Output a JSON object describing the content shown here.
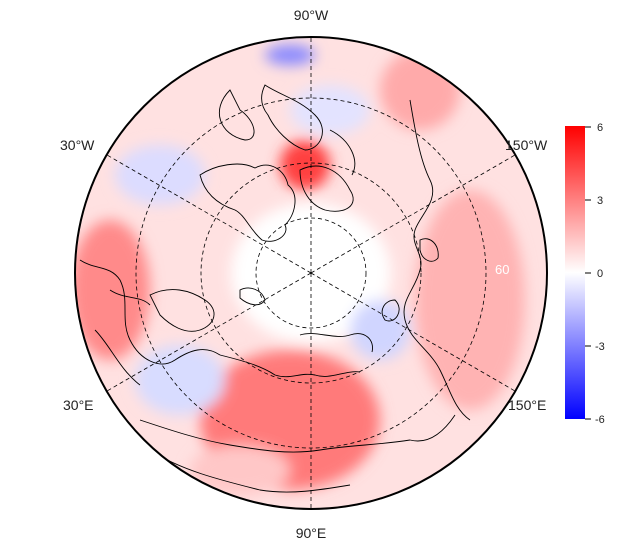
{
  "map": {
    "projection": "north-polar-stereographic",
    "longitude_labels": {
      "top": "90°W",
      "upper_left": "30°W",
      "upper_right": "150°W",
      "lower_left": "30°E",
      "lower_right": "150°E",
      "bottom": "90°E"
    },
    "latitude_label": "60",
    "graticule": {
      "latitude_circles": 3,
      "meridians_every_deg": 30,
      "style": "dashed"
    }
  },
  "colorbar": {
    "ticks": [
      "6",
      "3",
      "0",
      "-3",
      "-6"
    ],
    "min": -6,
    "max": 6,
    "colors": {
      "high": "#ff0000",
      "mid": "#ffffff",
      "low": "#0000ff"
    }
  }
}
